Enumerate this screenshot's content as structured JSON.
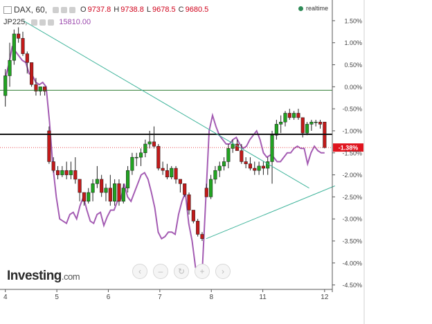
{
  "header": {
    "symbol": "DAX, 60,",
    "open_label": "O",
    "open": "9737.8",
    "high_label": "H",
    "high": "9738.8",
    "low_label": "L",
    "low": "9678.5",
    "close_label": "C",
    "close": "9680.5",
    "compare_symbol": "JP225,",
    "compare_value": "15810.00",
    "realtime": "realtime"
  },
  "logo": {
    "brand": "Investing",
    "domain": ".com"
  },
  "colors": {
    "up": "#21a321",
    "down": "#c21a1a",
    "compare": "#a45cb3",
    "trendline": "#3fb49b",
    "hline_green": "#2f7d32",
    "hline_black": "#111111",
    "price_badge": "#e0141e",
    "axis_text": "#444444"
  },
  "chart_data": {
    "type": "candlestick",
    "title": "",
    "y_unit": "percent change",
    "ylim": [
      -4.6,
      1.75
    ],
    "y_ticks": [
      "1.50%",
      "1.00%",
      "0.50%",
      "0.00%",
      "-0.50%",
      "-1.00%",
      "-1.50%",
      "-2.00%",
      "-2.50%",
      "-3.00%",
      "-3.50%",
      "-4.00%",
      "-4.50%"
    ],
    "x_ticks": [
      "4",
      "5",
      "6",
      "7",
      "8",
      "11",
      "12"
    ],
    "x_tick_positions": [
      0,
      10,
      20,
      30,
      40,
      50,
      62
    ],
    "current_value": -1.38,
    "current_label": "-1.38%",
    "candles": [
      [
        -0.2,
        0.4,
        -0.45,
        0.25
      ],
      [
        0.25,
        1.0,
        0.0,
        0.6
      ],
      [
        0.6,
        1.3,
        0.5,
        1.2
      ],
      [
        1.2,
        1.35,
        1.0,
        1.1
      ],
      [
        1.1,
        1.25,
        0.7,
        0.75
      ],
      [
        0.75,
        0.8,
        0.3,
        0.55
      ],
      [
        0.55,
        0.5,
        0.0,
        0.05
      ],
      [
        0.05,
        0.2,
        -0.2,
        -0.1
      ],
      [
        -0.1,
        0.0,
        -0.2,
        0.0
      ],
      [
        0.0,
        0.0,
        -0.2,
        -0.1
      ],
      [
        -1.0,
        -0.9,
        -1.75,
        -1.7
      ],
      [
        -1.7,
        -1.6,
        -1.95,
        -1.9
      ],
      [
        -1.9,
        -1.8,
        -2.1,
        -2.0
      ],
      [
        -2.0,
        -1.8,
        -2.05,
        -1.9
      ],
      [
        -1.9,
        -1.7,
        -2.1,
        -2.0
      ],
      [
        -2.0,
        -1.7,
        -2.1,
        -1.9
      ],
      [
        -1.9,
        -1.6,
        -2.2,
        -2.1
      ],
      [
        -2.1,
        -2.1,
        -2.6,
        -2.4
      ],
      [
        -2.4,
        -2.4,
        -2.7,
        -2.6
      ],
      [
        -2.6,
        -2.3,
        -2.65,
        -2.4
      ],
      [
        -2.4,
        -2.1,
        -2.6,
        -2.2
      ],
      [
        -2.2,
        -1.8,
        -2.3,
        -2.1
      ],
      [
        -2.1,
        -2.0,
        -2.5,
        -2.4
      ],
      [
        -2.4,
        -2.2,
        -2.6,
        -2.3
      ],
      [
        -2.3,
        -2.0,
        -2.7,
        -2.6
      ],
      [
        -2.6,
        -2.1,
        -2.7,
        -2.2
      ],
      [
        -2.2,
        -2.1,
        -2.7,
        -2.6
      ],
      [
        -2.6,
        -2.2,
        -2.65,
        -2.3
      ],
      [
        -2.3,
        -1.8,
        -2.4,
        -1.9
      ],
      [
        -1.9,
        -1.5,
        -2.0,
        -1.6
      ],
      [
        -1.6,
        -1.5,
        -1.8,
        -1.6
      ],
      [
        -1.6,
        -1.4,
        -1.8,
        -1.5
      ],
      [
        -1.5,
        -1.2,
        -1.6,
        -1.3
      ],
      [
        -1.3,
        -1.0,
        -1.4,
        -1.25
      ],
      [
        -1.25,
        -0.9,
        -1.4,
        -1.35
      ],
      [
        -1.35,
        -1.3,
        -1.9,
        -1.85
      ],
      [
        -1.85,
        -1.7,
        -2.0,
        -1.9
      ],
      [
        -1.9,
        -1.75,
        -2.1,
        -2.05
      ],
      [
        -2.05,
        -1.8,
        -2.1,
        -1.85
      ],
      [
        -1.85,
        -1.8,
        -2.2,
        -2.1
      ],
      [
        -2.1,
        -2.1,
        -2.4,
        -2.2
      ],
      [
        -2.2,
        -2.2,
        -2.5,
        -2.45
      ],
      [
        -2.45,
        -2.4,
        -2.9,
        -2.8
      ],
      [
        -2.8,
        -2.8,
        -3.1,
        -3.05
      ],
      [
        -3.05,
        -3.0,
        -3.4,
        -3.35
      ],
      [
        -3.35,
        -3.3,
        -3.5,
        -3.45
      ],
      [
        -2.3,
        -2.2,
        -2.5,
        -2.5
      ],
      [
        -2.5,
        -2.0,
        -2.55,
        -2.1
      ],
      [
        -2.1,
        -1.8,
        -2.2,
        -1.9
      ],
      [
        -1.9,
        -1.7,
        -2.05,
        -1.8
      ],
      [
        -1.8,
        -1.6,
        -1.9,
        -1.7
      ],
      [
        -1.7,
        -1.3,
        -1.85,
        -1.4
      ],
      [
        -1.4,
        -1.2,
        -1.5,
        -1.3
      ],
      [
        -1.3,
        -1.2,
        -1.45,
        -1.45
      ],
      [
        -1.45,
        -1.3,
        -1.75,
        -1.7
      ],
      [
        -1.7,
        -1.6,
        -1.85,
        -1.75
      ],
      [
        -1.75,
        -1.6,
        -1.9,
        -1.85
      ],
      [
        -1.85,
        -1.7,
        -2.0,
        -1.9
      ],
      [
        -1.9,
        -1.7,
        -2.0,
        -1.8
      ],
      [
        -1.8,
        -1.7,
        -2.0,
        -1.85
      ],
      [
        -1.85,
        -1.6,
        -2.0,
        -1.7
      ],
      [
        -1.7,
        -1.0,
        -2.2,
        -1.1
      ],
      [
        -1.1,
        -0.75,
        -1.2,
        -0.85
      ],
      [
        -0.85,
        -0.65,
        -1.05,
        -0.8
      ],
      [
        -0.8,
        -0.55,
        -0.9,
        -0.6
      ],
      [
        -0.6,
        -0.5,
        -0.75,
        -0.7
      ],
      [
        -0.7,
        -0.55,
        -0.75,
        -0.6
      ],
      [
        -0.6,
        -0.5,
        -0.75,
        -0.7
      ],
      [
        -0.7,
        -0.7,
        -1.15,
        -1.05
      ],
      [
        -1.05,
        -0.8,
        -1.1,
        -0.85
      ],
      [
        -0.85,
        -0.75,
        -1.0,
        -0.8
      ],
      [
        -0.8,
        -0.75,
        -0.9,
        -0.8
      ],
      [
        -0.8,
        -0.75,
        -0.95,
        -0.85
      ],
      [
        -0.8,
        -0.8,
        -1.4,
        -1.38
      ]
    ],
    "compare_series": [
      0.2,
      0.5,
      0.9,
      0.8,
      0.7,
      0.6,
      0.55,
      0.3,
      0.25,
      0.1,
      0.05,
      0.1,
      0.0,
      -0.8,
      -1.8,
      -2.5,
      -3.0,
      -3.05,
      -3.1,
      -2.9,
      -2.85,
      -3.0,
      -2.7,
      -2.5,
      -2.8,
      -3.05,
      -3.1,
      -2.9,
      -2.85,
      -3.15,
      -2.95,
      -2.8,
      -2.8,
      -2.6,
      -2.55,
      -2.2,
      -2.5,
      -2.6,
      -2.4,
      -2.2,
      -2.0,
      -1.95,
      -2.1,
      -2.4,
      -2.75,
      -3.3,
      -3.45,
      -3.4,
      -3.3,
      -3.3,
      -3.35,
      -2.9,
      -2.6,
      -2.4,
      -3.1,
      -3.5,
      -4.1,
      -4.2,
      -4.15,
      -2.6,
      -1.0,
      -0.65,
      -0.9,
      -1.1,
      -1.2,
      -1.3,
      -1.3,
      -1.2,
      -1.15,
      -1.3,
      -1.4,
      -1.35,
      -1.2,
      -1.1,
      -1.0,
      -1.2,
      -1.5,
      -1.6,
      -1.55,
      -1.6,
      -1.7,
      -1.7,
      -1.6,
      -1.5,
      -1.5,
      -1.4,
      -1.35,
      -1.4,
      -1.4,
      -1.75,
      -1.5,
      -1.35,
      -1.45,
      -1.5,
      -1.5
    ],
    "horizontal_lines": [
      {
        "value": -0.08,
        "color": "hline_green"
      },
      {
        "value": -1.08,
        "color": "hline_black"
      }
    ],
    "trendlines": [
      {
        "from": [
          3.5,
          1.5
        ],
        "to": [
          59,
          -2.3
        ]
      },
      {
        "from": [
          39,
          -3.45
        ],
        "to": [
          64,
          -2.25
        ]
      }
    ]
  },
  "navigation": {
    "prev_icon": "chevron-left-icon",
    "zoom_out_icon": "minus-icon",
    "reset_icon": "refresh-icon",
    "zoom_in_icon": "plus-icon",
    "next_icon": "chevron-right-icon"
  }
}
